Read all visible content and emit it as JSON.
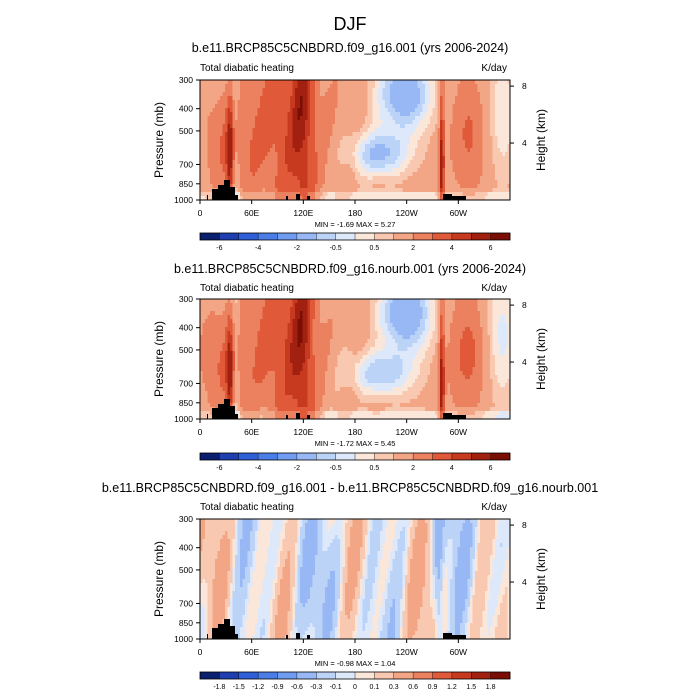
{
  "page_title": "DJF",
  "chart_data": [
    {
      "type": "heatmap",
      "title": "b.e11.BRCP85C5CNBDRD.f09_g16.001 (yrs 2006-2024)",
      "left_label": "Total diabatic heating",
      "right_label": "K/day",
      "ylabel": "Pressure (mb)",
      "y2label": "Height (km)",
      "xticks": [
        "0",
        "60E",
        "120E",
        "180",
        "120W",
        "60W"
      ],
      "xtick_values": [
        0,
        60,
        120,
        180,
        240,
        300
      ],
      "xlim": [
        0,
        360
      ],
      "yticks": [
        "300",
        "400",
        "500",
        "700",
        "850",
        "1000"
      ],
      "ytick_values": [
        300,
        400,
        500,
        700,
        850,
        1000
      ],
      "ylim": [
        1000,
        300
      ],
      "y2ticks": [
        "4",
        "8"
      ],
      "y2tick_values": [
        4,
        8
      ],
      "stats": "MIN =  -1.69   MAX =   5.27",
      "colorbar_labels": [
        "-6",
        "-4",
        "-2",
        "-0.5",
        "0.5",
        "2",
        "4",
        "6"
      ],
      "colorbar_levels": [
        -8,
        -6,
        -5,
        -4,
        -3,
        -2,
        -1,
        -0.5,
        0,
        0.5,
        1,
        2,
        3,
        4,
        5,
        6,
        8
      ]
    },
    {
      "type": "heatmap",
      "title": "b.e11.BRCP85C5CNBDRD.f09_g16.nourb.001 (yrs 2006-2024)",
      "left_label": "Total diabatic heating",
      "right_label": "K/day",
      "ylabel": "Pressure (mb)",
      "y2label": "Height (km)",
      "xticks": [
        "0",
        "60E",
        "120E",
        "180",
        "120W",
        "60W"
      ],
      "xtick_values": [
        0,
        60,
        120,
        180,
        240,
        300
      ],
      "xlim": [
        0,
        360
      ],
      "yticks": [
        "300",
        "400",
        "500",
        "700",
        "850",
        "1000"
      ],
      "ytick_values": [
        300,
        400,
        500,
        700,
        850,
        1000
      ],
      "ylim": [
        1000,
        300
      ],
      "y2ticks": [
        "4",
        "8"
      ],
      "y2tick_values": [
        4,
        8
      ],
      "stats": "MIN =  -1.72   MAX =   5.45",
      "colorbar_labels": [
        "-6",
        "-4",
        "-2",
        "-0.5",
        "0.5",
        "2",
        "4",
        "6"
      ],
      "colorbar_levels": [
        -8,
        -6,
        -5,
        -4,
        -3,
        -2,
        -1,
        -0.5,
        0,
        0.5,
        1,
        2,
        3,
        4,
        5,
        6,
        8
      ]
    },
    {
      "type": "heatmap",
      "title": "b.e11.BRCP85C5CNBDRD.f09_g16.001 - b.e11.BRCP85C5CNBDRD.f09_g16.nourb.001",
      "left_label": "Total diabatic heating",
      "right_label": "K/day",
      "ylabel": "Pressure (mb)",
      "y2label": "Height (km)",
      "xticks": [
        "0",
        "60E",
        "120E",
        "180",
        "120W",
        "60W"
      ],
      "xtick_values": [
        0,
        60,
        120,
        180,
        240,
        300
      ],
      "xlim": [
        0,
        360
      ],
      "yticks": [
        "300",
        "400",
        "500",
        "700",
        "850",
        "1000"
      ],
      "ytick_values": [
        300,
        400,
        500,
        700,
        850,
        1000
      ],
      "ylim": [
        1000,
        300
      ],
      "y2ticks": [
        "4",
        "8"
      ],
      "y2tick_values": [
        4,
        8
      ],
      "stats": "MIN =  -0.98   MAX =   1.04",
      "colorbar_labels": [
        "-1.8",
        "-1.5",
        "-1.2",
        "-0.9",
        "-0.6",
        "-0.3",
        "-0.1",
        "0",
        "0.1",
        "0.3",
        "0.6",
        "0.9",
        "1.2",
        "1.5",
        "1.8"
      ],
      "colorbar_levels": [
        -2,
        -1.8,
        -1.5,
        -1.2,
        -0.9,
        -0.6,
        -0.3,
        -0.1,
        0,
        0.1,
        0.3,
        0.6,
        0.9,
        1.2,
        1.5,
        1.8,
        2
      ]
    }
  ],
  "colors": {
    "palette": [
      "#0a1f6e",
      "#1f3fb0",
      "#2f5fd6",
      "#4a7ee6",
      "#6f9bf0",
      "#97b8f5",
      "#bcd3f8",
      "#dde9fb",
      "#fbe6da",
      "#f8c9b0",
      "#f3a685",
      "#ec8160",
      "#e05a3a",
      "#c83a20",
      "#a2200f",
      "#7a0e05"
    ]
  }
}
